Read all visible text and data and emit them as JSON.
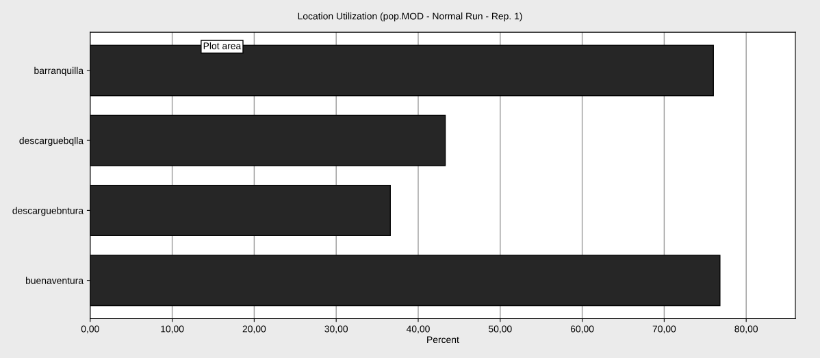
{
  "chart_data": {
    "type": "bar",
    "orientation": "horizontal",
    "title": "Location Utilization (pop.MOD - Normal Run - Rep. 1)",
    "xlabel": "Percent",
    "categories": [
      "barranquilla",
      "descarguebqlla",
      "descarguebntura",
      "buenaventura"
    ],
    "values": [
      76.0,
      43.3,
      36.6,
      76.8
    ],
    "color": "#262626",
    "xlim": [
      0,
      86
    ],
    "xticks": [
      {
        "value": 0,
        "label": "0,00"
      },
      {
        "value": 10,
        "label": "10,00"
      },
      {
        "value": 20,
        "label": "20,00"
      },
      {
        "value": 30,
        "label": "30,00"
      },
      {
        "value": 40,
        "label": "40,00"
      },
      {
        "value": 50,
        "label": "50,00"
      },
      {
        "value": 60,
        "label": "60,00"
      },
      {
        "value": 70,
        "label": "70,00"
      },
      {
        "value": 80,
        "label": "80,00"
      }
    ],
    "grid": "x",
    "annotations": [
      "Plot area"
    ]
  }
}
